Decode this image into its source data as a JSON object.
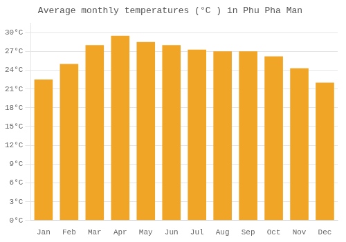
{
  "chart_data": {
    "type": "bar",
    "title": "Average monthly temperatures (°C ) in Phu Pha Man",
    "categories": [
      "Jan",
      "Feb",
      "Mar",
      "Apr",
      "May",
      "Jun",
      "Jul",
      "Aug",
      "Sep",
      "Oct",
      "Nov",
      "Dec"
    ],
    "values": [
      22.5,
      25.0,
      28.0,
      29.5,
      28.5,
      28.0,
      27.3,
      27.0,
      27.0,
      26.2,
      24.3,
      22.0
    ],
    "color": "#F0A526",
    "ylim": [
      0,
      31.5
    ],
    "yticks": [
      {
        "value": 0,
        "label": "0°C"
      },
      {
        "value": 3,
        "label": "3°C"
      },
      {
        "value": 6,
        "label": "6°C"
      },
      {
        "value": 9,
        "label": "9°C"
      },
      {
        "value": 12,
        "label": "12°C"
      },
      {
        "value": 15,
        "label": "15°C"
      },
      {
        "value": 18,
        "label": "18°C"
      },
      {
        "value": 21,
        "label": "21°C"
      },
      {
        "value": 24,
        "label": "24°C"
      },
      {
        "value": 27,
        "label": "27°C"
      },
      {
        "value": 30,
        "label": "30°C"
      }
    ],
    "grid": true
  }
}
